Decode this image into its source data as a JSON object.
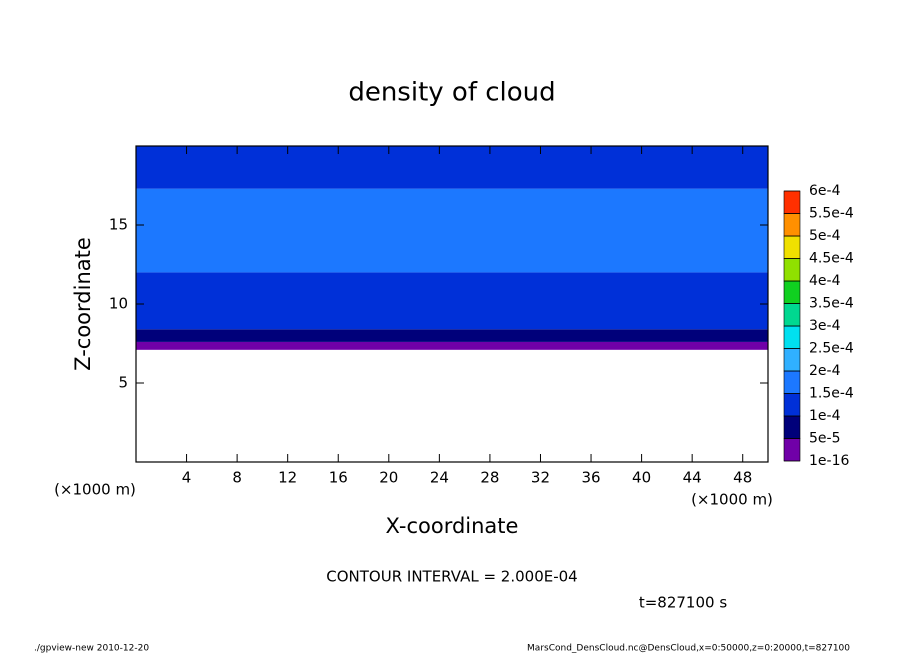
{
  "chart_data": {
    "type": "contour",
    "title": "density of cloud",
    "x_label": "X-coordinate",
    "y_label": "Z-coordinate",
    "x_unit": "(×1000 m)",
    "y_unit": "(×1000 m)",
    "xlim": [
      0,
      50
    ],
    "ylim": [
      0,
      20
    ],
    "xticks": [
      4,
      8,
      12,
      16,
      20,
      24,
      28,
      32,
      36,
      40,
      44,
      48
    ],
    "yticks": [
      5,
      10,
      15
    ],
    "z_edges": [
      7.1,
      7.6,
      8.4,
      10,
      12,
      17.3,
      20
    ],
    "values": [
      2e-05,
      7e-05,
      0.00011,
      0.00014,
      0.00016,
      0.00014
    ],
    "levels": [
      {
        "value": 1e-16,
        "label": "1e-16"
      },
      {
        "value": 5e-05,
        "label": "5e-5"
      },
      {
        "value": 0.0001,
        "label": "1e-4"
      },
      {
        "value": 0.00015,
        "label": "1.5e-4"
      },
      {
        "value": 0.0002,
        "label": "2e-4"
      },
      {
        "value": 0.00025,
        "label": "2.5e-4"
      },
      {
        "value": 0.0003,
        "label": "3e-4"
      },
      {
        "value": 0.00035,
        "label": "3.5e-4"
      },
      {
        "value": 0.0004,
        "label": "4e-4"
      },
      {
        "value": 0.00045,
        "label": "4.5e-4"
      },
      {
        "value": 0.0005,
        "label": "5e-4"
      },
      {
        "value": 0.00055,
        "label": "5.5e-4"
      },
      {
        "value": 0.0006,
        "label": "6e-4"
      }
    ],
    "colors": [
      "#7000a8",
      "#00007a",
      "#0030d8",
      "#1c78ff",
      "#30b0ff",
      "#00e0f0",
      "#00d890",
      "#10d020",
      "#90e000",
      "#f0e000",
      "#ff9000",
      "#ff3000",
      "#ff9090"
    ],
    "contour_interval": "CONTOUR INTERVAL = 2.000E-04",
    "time": "t=827100 s",
    "footer_left": "./gpview-new   2010-12-20",
    "footer_right": "MarsCond_DensCloud.nc@DensCloud,x=0:50000,z=0:20000,t=827100"
  }
}
